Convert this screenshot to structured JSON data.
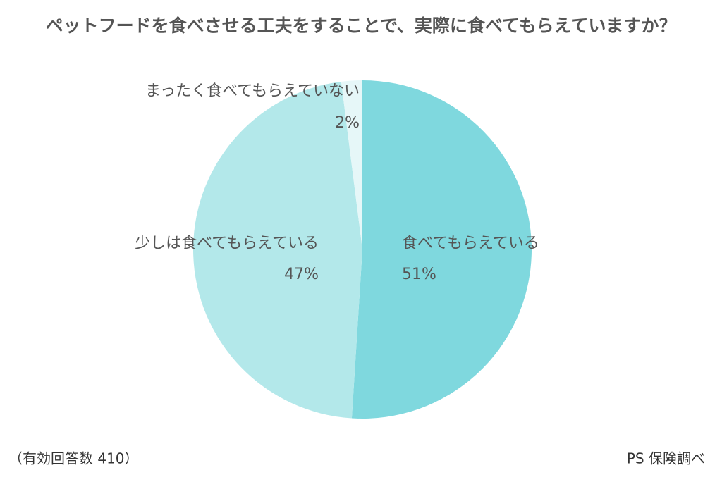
{
  "chart_data": {
    "type": "pie",
    "title": "ペットフードを食べさせる工夫をすることで、実際に食べてもらえていますか？",
    "categories": [
      "食べてもらえている",
      "少しは食べてもらえている",
      "まったく食べてもらえていない"
    ],
    "values": [
      51,
      47,
      2
    ],
    "value_labels": [
      "51%",
      "47%",
      "2%"
    ],
    "colors": [
      "#7fd8de",
      "#b3e8ea",
      "#e6f7f8"
    ],
    "note": "（有効回答数 410）",
    "source": "PS 保険調べ"
  }
}
